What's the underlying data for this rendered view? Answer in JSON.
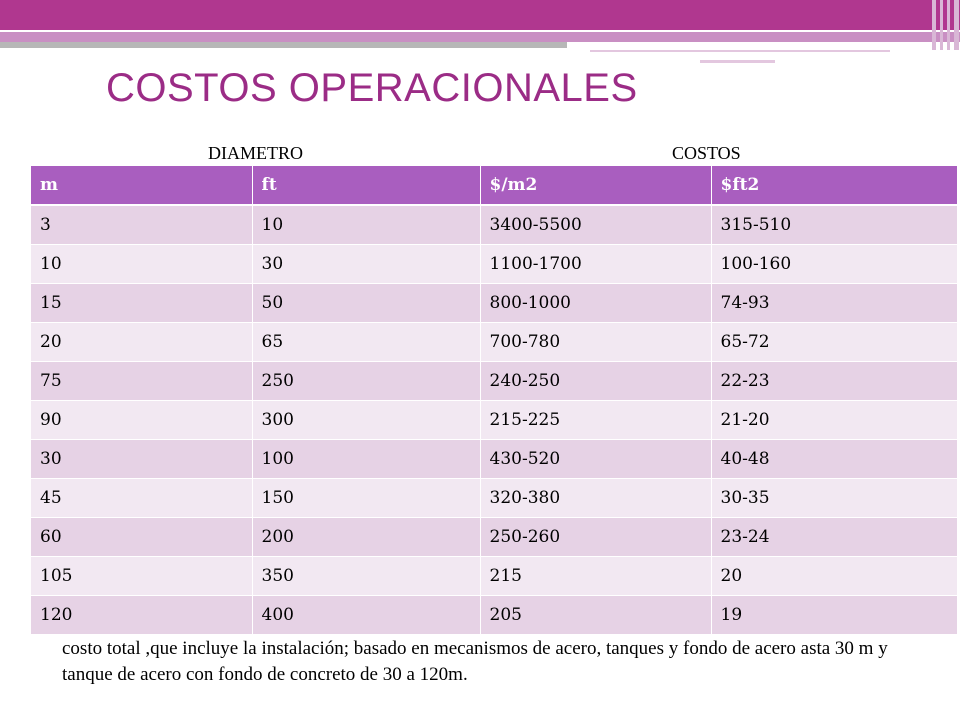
{
  "slide": {
    "title": "COSTOS OPERACIONALES",
    "group_labels": {
      "diameter": "DIAMETRO",
      "costs": "COSTOS"
    },
    "table": {
      "headers": [
        "m",
        "ft",
        "$/m2",
        "$ft2"
      ],
      "rows": [
        [
          "3",
          "10",
          "3400-5500",
          "315-510"
        ],
        [
          "10",
          "30",
          "1100-1700",
          "100-160"
        ],
        [
          "15",
          "50",
          "800-1000",
          "74-93"
        ],
        [
          "20",
          "65",
          "700-780",
          "65-72"
        ],
        [
          "75",
          "250",
          "240-250",
          "22-23"
        ],
        [
          "90",
          "300",
          "215-225",
          "21-20"
        ],
        [
          "30",
          "100",
          "430-520",
          "40-48"
        ],
        [
          "45",
          "150",
          "320-380",
          "30-35"
        ],
        [
          "60",
          "200",
          "250-260",
          "23-24"
        ],
        [
          "105",
          "350",
          "215",
          "20"
        ],
        [
          "120",
          "400",
          "205",
          "19"
        ]
      ]
    },
    "note": "costo total ,que incluye la instalación; basado en mecanismos de acero, tanques y fondo de acero asta 30 m y tanque de acero con fondo de concreto de 30 a 120m."
  },
  "colors": {
    "header_band": "#b0378f",
    "title": "#9b2c86",
    "table_header": "#a95ebf",
    "row_odd": "#e6d2e5",
    "row_even": "#f2e8f2"
  }
}
